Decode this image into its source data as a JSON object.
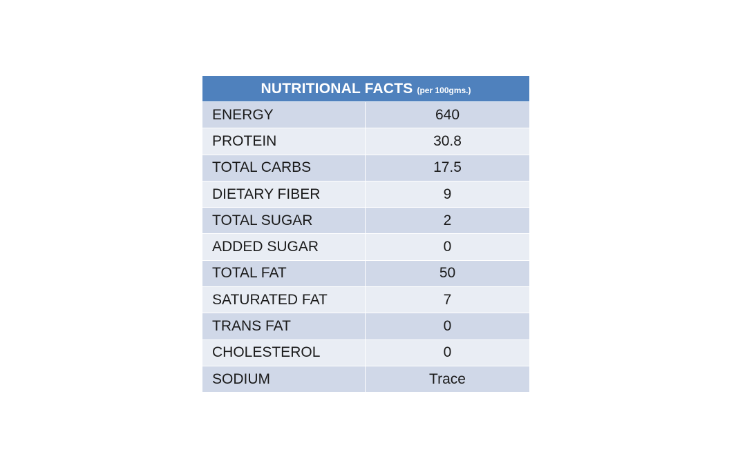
{
  "table": {
    "title": "NUTRITIONAL FACTS",
    "subtitle": "(per 100gms.)",
    "rows": [
      {
        "name": "ENERGY",
        "value": "640"
      },
      {
        "name": "PROTEIN",
        "value": "30.8"
      },
      {
        "name": "TOTAL CARBS",
        "value": "17.5"
      },
      {
        "name": "DIETARY FIBER",
        "value": "9"
      },
      {
        "name": "TOTAL SUGAR",
        "value": "2"
      },
      {
        "name": "ADDED SUGAR",
        "value": "0"
      },
      {
        "name": "TOTAL FAT",
        "value": "50"
      },
      {
        "name": "SATURATED FAT",
        "value": "7"
      },
      {
        "name": "TRANS FAT",
        "value": "0"
      },
      {
        "name": "CHOLESTEROL",
        "value": "0"
      },
      {
        "name": "SODIUM",
        "value": "Trace"
      }
    ]
  },
  "colors": {
    "header_bg": "#4f81bd",
    "row_dark": "#d0d8e8",
    "row_light": "#e9edf4"
  }
}
